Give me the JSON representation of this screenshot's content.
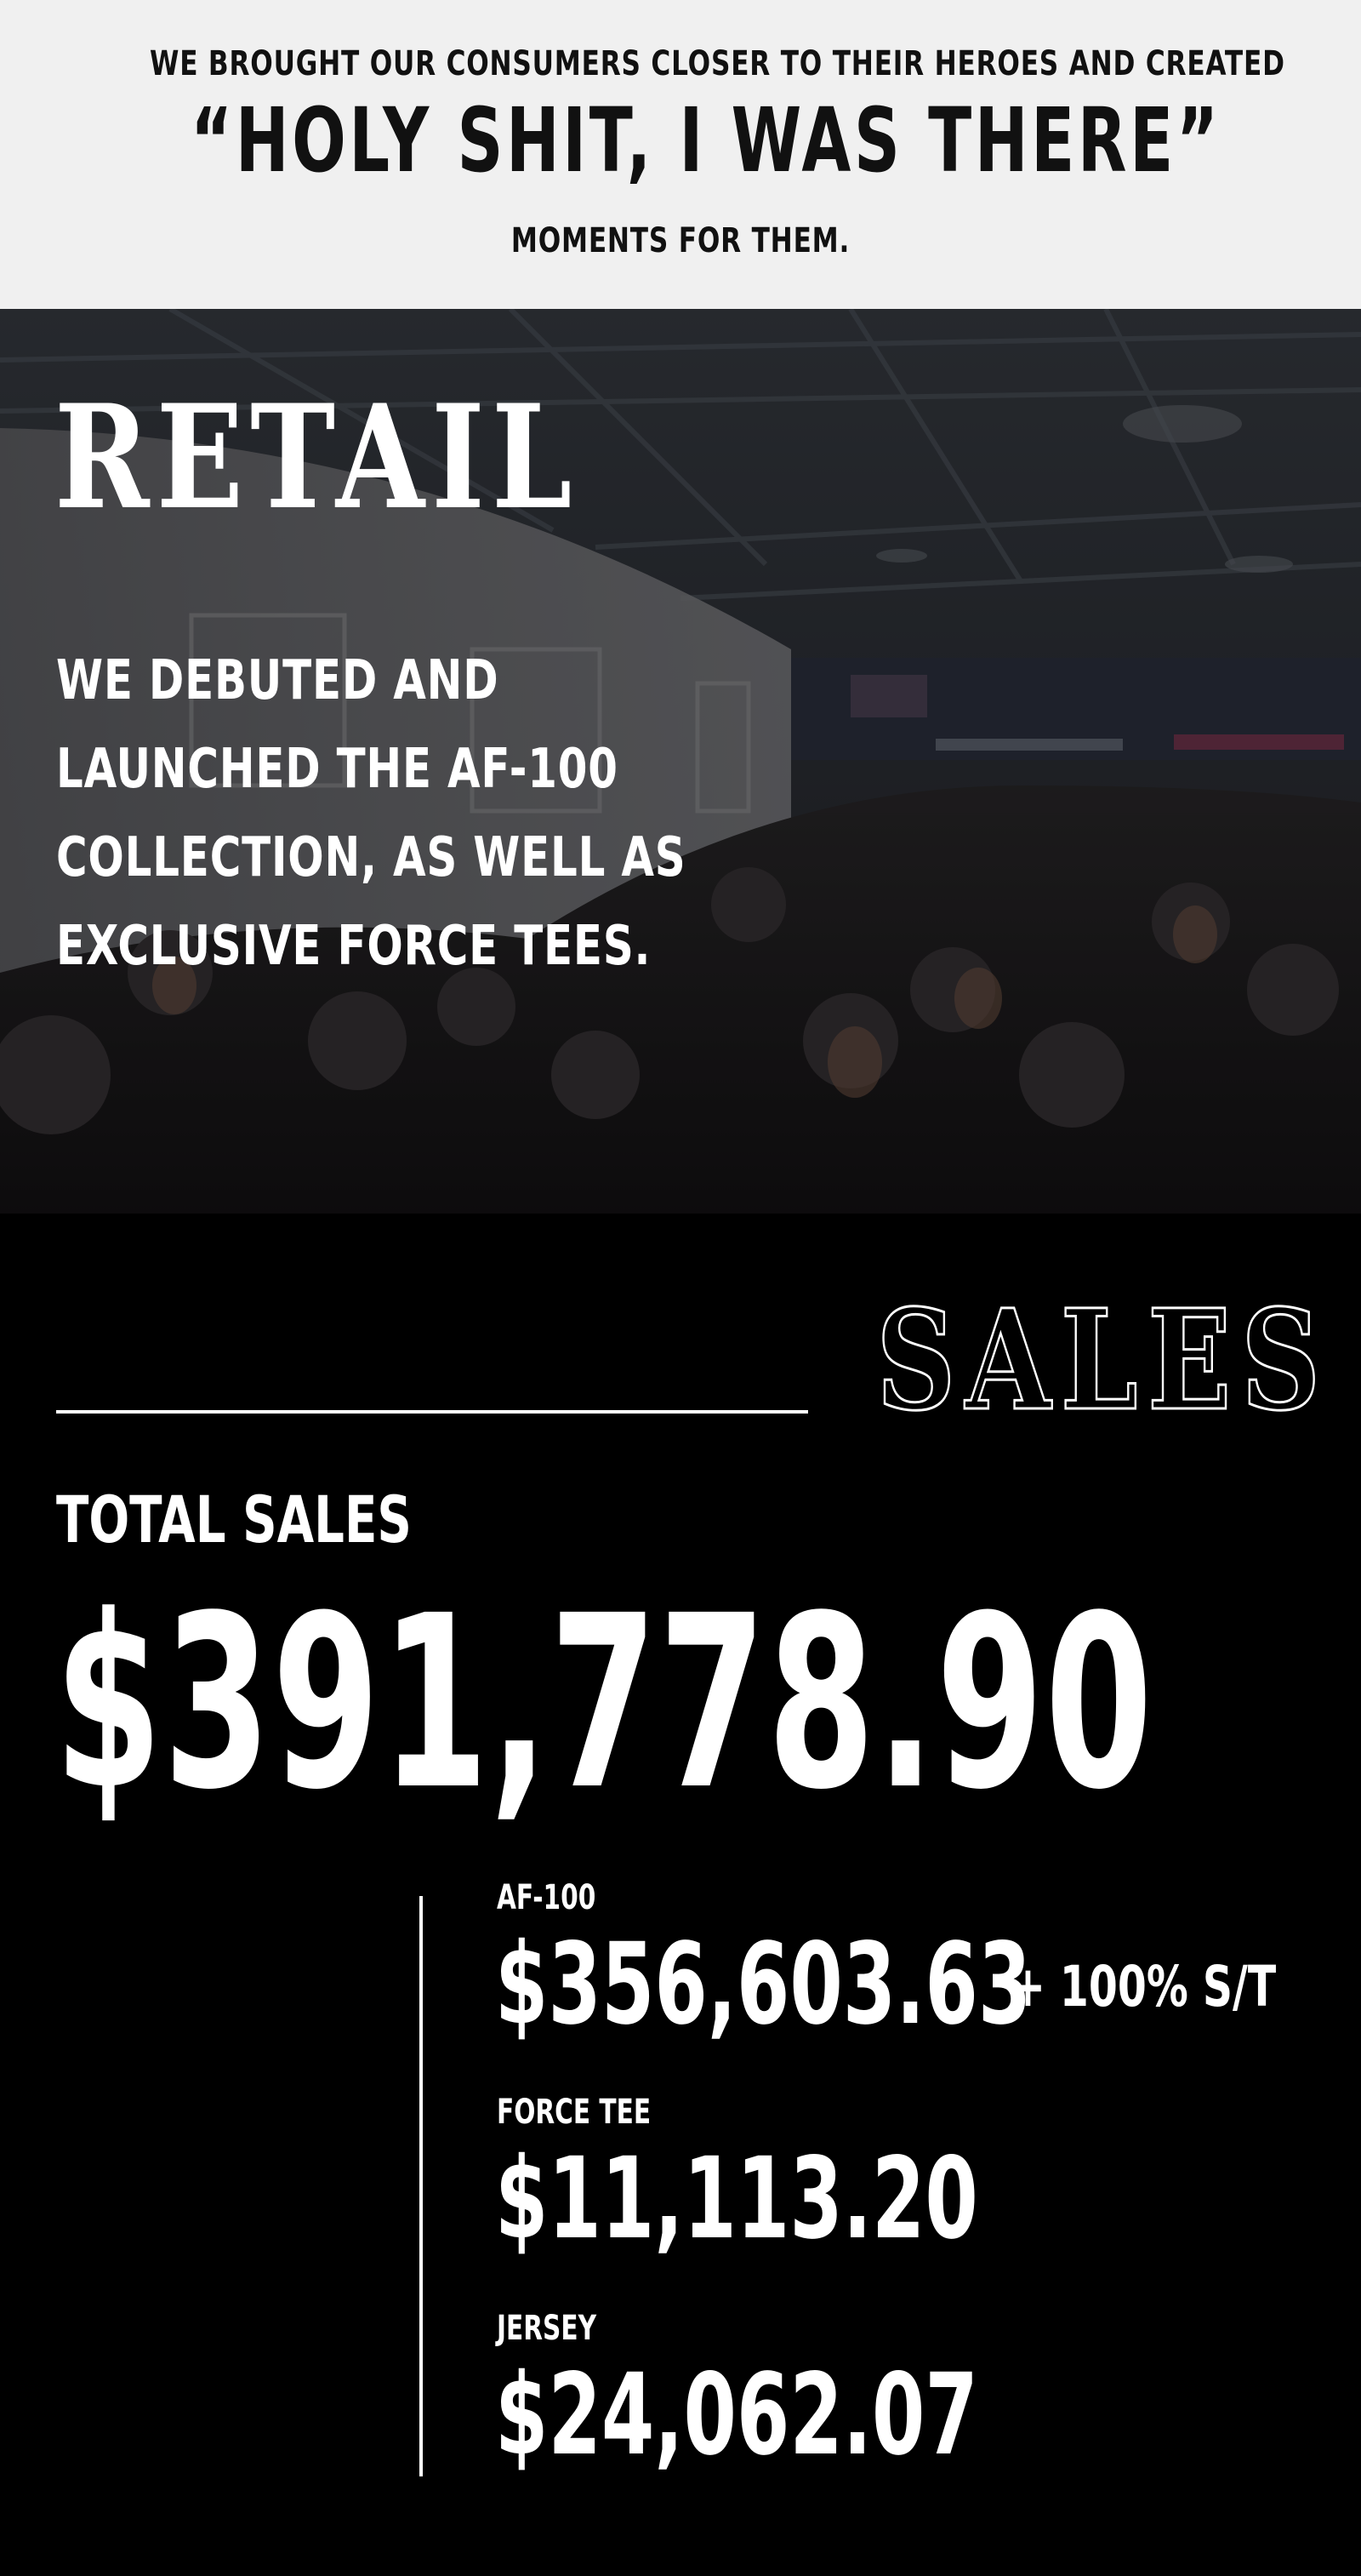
{
  "header": {
    "line1": "WE BROUGHT OUR CONSUMERS CLOSER TO THEIR HEROES AND CREATED",
    "quote": "“HOLY SHIT, I WAS THERE”",
    "line3": "MOMENTS FOR THEM."
  },
  "retail": {
    "title": "RETAIL",
    "body_lines": [
      "WE DEBUTED AND",
      "LAUNCHED THE AF-100",
      "COLLECTION, AS WELL AS",
      "EXCLUSIVE FORCE TEES."
    ]
  },
  "sales": {
    "heading": "SALES",
    "total_label": "TOTAL SALES",
    "total_value": "$391,778.90",
    "items": [
      {
        "label": "AF-100",
        "value": "$356,603.63",
        "note": "+ 100% S/T"
      },
      {
        "label": "FORCE TEE",
        "value": "$11,113.20"
      },
      {
        "label": "JERSEY",
        "value": "$24,062.07"
      }
    ]
  },
  "colors": {
    "header_bg": "#f0f0f0",
    "header_text": "#111111",
    "sales_bg": "#000000",
    "text_light": "#ffffff"
  }
}
